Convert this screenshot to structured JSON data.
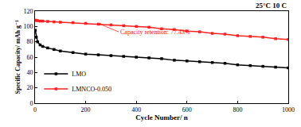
{
  "chart_data": {
    "type": "line",
    "title": "25°C 10 C",
    "x_label": "Cycle Number/ n",
    "y_label": "Specific Capacity/ mAh g⁻¹",
    "x": [
      1,
      5,
      10,
      20,
      30,
      50,
      75,
      100,
      150,
      200,
      250,
      300,
      350,
      400,
      450,
      500,
      550,
      600,
      650,
      700,
      750,
      800,
      850,
      900,
      950,
      1000
    ],
    "series": [
      {
        "name": "LMO",
        "color": "#000000",
        "marker": "square",
        "values": [
          95,
          86,
          80,
          76,
          74,
          72,
          70,
          68,
          66,
          64,
          63,
          62,
          61,
          60,
          59,
          58,
          56,
          55,
          54,
          53,
          52,
          50,
          49,
          48,
          47,
          46
        ]
      },
      {
        "name": "LMNCO-0.050",
        "color": "#ff2020",
        "marker": "square",
        "values": [
          108,
          108,
          107.5,
          107,
          107,
          106.5,
          106,
          105.5,
          105,
          104,
          103,
          102,
          101,
          100,
          99,
          97,
          96,
          94,
          93,
          91,
          90,
          88,
          87,
          86,
          84,
          83
        ]
      }
    ],
    "annotations": [
      {
        "text": "Capacity retention: 77.43%",
        "color": "#ff2020"
      }
    ],
    "xlim": [
      0,
      1000
    ],
    "xticks": [
      0,
      200,
      400,
      600,
      800,
      1000
    ],
    "ylim": [
      0,
      120
    ],
    "yticks": [
      0,
      20,
      40,
      60,
      80,
      100,
      120
    ],
    "grid": false,
    "legend": "lower left"
  }
}
